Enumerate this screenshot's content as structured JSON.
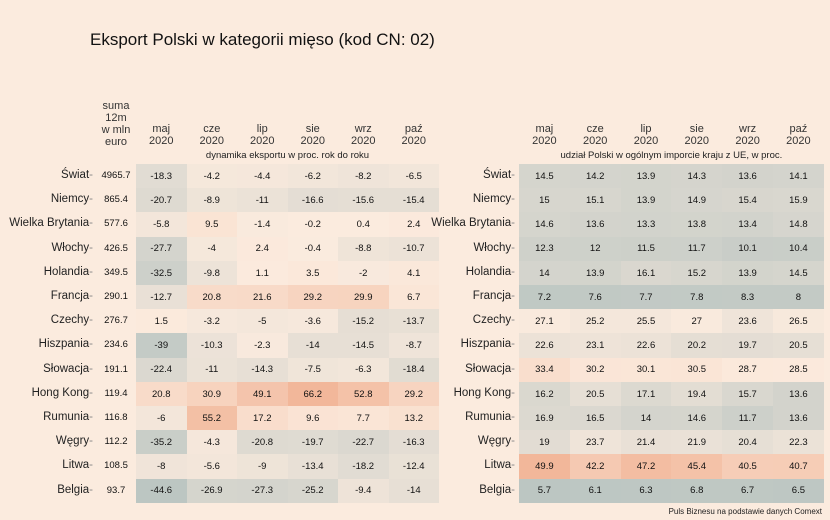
{
  "title": "Eksport Polski w kategorii mięso (kod CN: 02)",
  "source": "Puls Biznesu na podstawie danych Comext",
  "colors": {
    "background": "#fbebde",
    "high": "#f2b79a",
    "low": "#bcc6c2",
    "mid": "#fbebde"
  },
  "chart_data": [
    {
      "type": "heatmap",
      "title": "",
      "subtitle": "dynamika eksportu w proc. rok do roku",
      "sum_header": "suma\n12m\nw mln\neuro",
      "columns": [
        "maj\n2020",
        "cze\n2020",
        "lip\n2020",
        "sie\n2020",
        "wrz\n2020",
        "paź\n2020"
      ],
      "rows": [
        "Świat",
        "Niemcy",
        "Wielka Brytania",
        "Włochy",
        "Holandia",
        "Francja",
        "Czechy",
        "Hiszpania",
        "Słowacja",
        "Hong Kong",
        "Rumunia",
        "Węgry",
        "Litwa",
        "Belgia"
      ],
      "sum_values": [
        "4965.7",
        "865.4",
        "577.6",
        "426.5",
        "349.5",
        "290.1",
        "276.7",
        "234.6",
        "191.1",
        "119.4",
        "116.8",
        "112.2",
        "108.5",
        "93.7"
      ],
      "values": [
        [
          "-18.3",
          "-4.2",
          "-4.4",
          "-6.2",
          "-8.2",
          "-6.5"
        ],
        [
          "-20.7",
          "-8.9",
          "-11",
          "-16.6",
          "-15.6",
          "-15.4"
        ],
        [
          "-5.8",
          "9.5",
          "-1.4",
          "-0.2",
          "0.4",
          "2.4"
        ],
        [
          "-27.7",
          "-4",
          "2.4",
          "-0.4",
          "-8.8",
          "-10.7"
        ],
        [
          "-32.5",
          "-9.8",
          "1.1",
          "3.5",
          "-2",
          "4.1"
        ],
        [
          "-12.7",
          "20.8",
          "21.6",
          "29.2",
          "29.9",
          "6.7"
        ],
        [
          "1.5",
          "-3.2",
          "-5",
          "-3.6",
          "-15.2",
          "-13.7"
        ],
        [
          "-39",
          "-10.3",
          "-2.3",
          "-14",
          "-14.5",
          "-8.7"
        ],
        [
          "-22.4",
          "-11",
          "-14.3",
          "-7.5",
          "-6.3",
          "-18.4"
        ],
        [
          "20.8",
          "30.9",
          "49.1",
          "66.2",
          "52.8",
          "29.2"
        ],
        [
          "-6",
          "55.2",
          "17.2",
          "9.6",
          "7.7",
          "13.2"
        ],
        [
          "-35.2",
          "-4.3",
          "-20.8",
          "-19.7",
          "-22.7",
          "-16.3"
        ],
        [
          "-8",
          "-5.6",
          "-9",
          "-13.4",
          "-18.2",
          "-12.4"
        ],
        [
          "-44.6",
          "-26.9",
          "-27.3",
          "-25.2",
          "-9.4",
          "-14"
        ]
      ]
    },
    {
      "type": "heatmap",
      "title": "",
      "subtitle": "udział Polski w ogólnym imporcie kraju z UE, w proc.",
      "columns": [
        "maj\n2020",
        "cze\n2020",
        "lip\n2020",
        "sie\n2020",
        "wrz\n2020",
        "paź\n2020"
      ],
      "rows": [
        "Świat",
        "Niemcy",
        "Wielka Brytania",
        "Włochy",
        "Holandia",
        "Francja",
        "Czechy",
        "Hiszpania",
        "Słowacja",
        "Hong Kong",
        "Rumunia",
        "Węgry",
        "Litwa",
        "Belgia"
      ],
      "values": [
        [
          "14.5",
          "14.2",
          "13.9",
          "14.3",
          "13.6",
          "14.1"
        ],
        [
          "15",
          "15.1",
          "13.9",
          "14.9",
          "15.4",
          "15.9"
        ],
        [
          "14.6",
          "13.6",
          "13.3",
          "13.8",
          "13.4",
          "14.8"
        ],
        [
          "12.3",
          "12",
          "11.5",
          "11.7",
          "10.1",
          "10.4"
        ],
        [
          "14",
          "13.9",
          "16.1",
          "15.2",
          "13.9",
          "14.5"
        ],
        [
          "7.2",
          "7.6",
          "7.7",
          "7.8",
          "8.3",
          "8"
        ],
        [
          "27.1",
          "25.2",
          "25.5",
          "27",
          "23.6",
          "26.5"
        ],
        [
          "22.6",
          "23.1",
          "22.6",
          "20.2",
          "19.7",
          "20.5"
        ],
        [
          "33.4",
          "30.2",
          "30.1",
          "30.5",
          "28.7",
          "28.5"
        ],
        [
          "16.2",
          "20.5",
          "17.1",
          "19.4",
          "15.7",
          "13.6"
        ],
        [
          "16.9",
          "16.5",
          "14",
          "14.6",
          "11.7",
          "13.6"
        ],
        [
          "19",
          "23.7",
          "21.4",
          "21.9",
          "20.4",
          "22.3"
        ],
        [
          "49.9",
          "42.2",
          "47.2",
          "45.4",
          "40.5",
          "40.7"
        ],
        [
          "5.7",
          "6.1",
          "6.3",
          "6.8",
          "6.7",
          "6.5"
        ]
      ]
    }
  ]
}
